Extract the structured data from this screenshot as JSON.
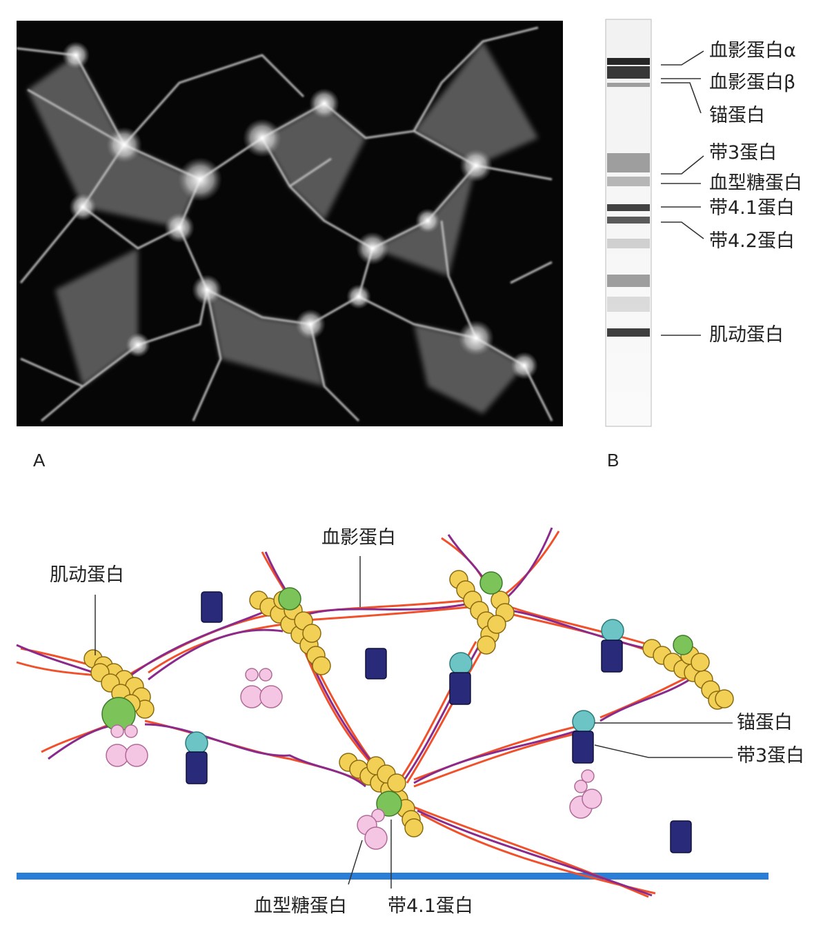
{
  "panels": {
    "a_label": "A",
    "b_label": "B"
  },
  "gel": {
    "bands": [
      {
        "label": "血影蛋白α"
      },
      {
        "label": "血影蛋白β"
      },
      {
        "label": "锚蛋白"
      },
      {
        "label": "带3蛋白"
      },
      {
        "label": "血型糖蛋白"
      },
      {
        "label": "带4.1蛋白"
      },
      {
        "label": "带4.2蛋白"
      },
      {
        "label": "肌动蛋白"
      }
    ]
  },
  "diagram": {
    "labels": {
      "spectrin": "血影蛋白",
      "actin": "肌动蛋白",
      "ankyrin": "锚蛋白",
      "band3": "带3蛋白",
      "glycophorin": "血型糖蛋白",
      "band41": "带4.1蛋白"
    },
    "colors": {
      "spectrin_orange": "#f0502a",
      "spectrin_purple": "#8a2a8a",
      "actin": "#f2cf55",
      "band41": "#7cc35a",
      "ankyrin": "#6cc4c4",
      "band3": "#2a2a7a",
      "glycophorin": "#f4c6e4",
      "membrane": "#2a7ed8"
    }
  }
}
